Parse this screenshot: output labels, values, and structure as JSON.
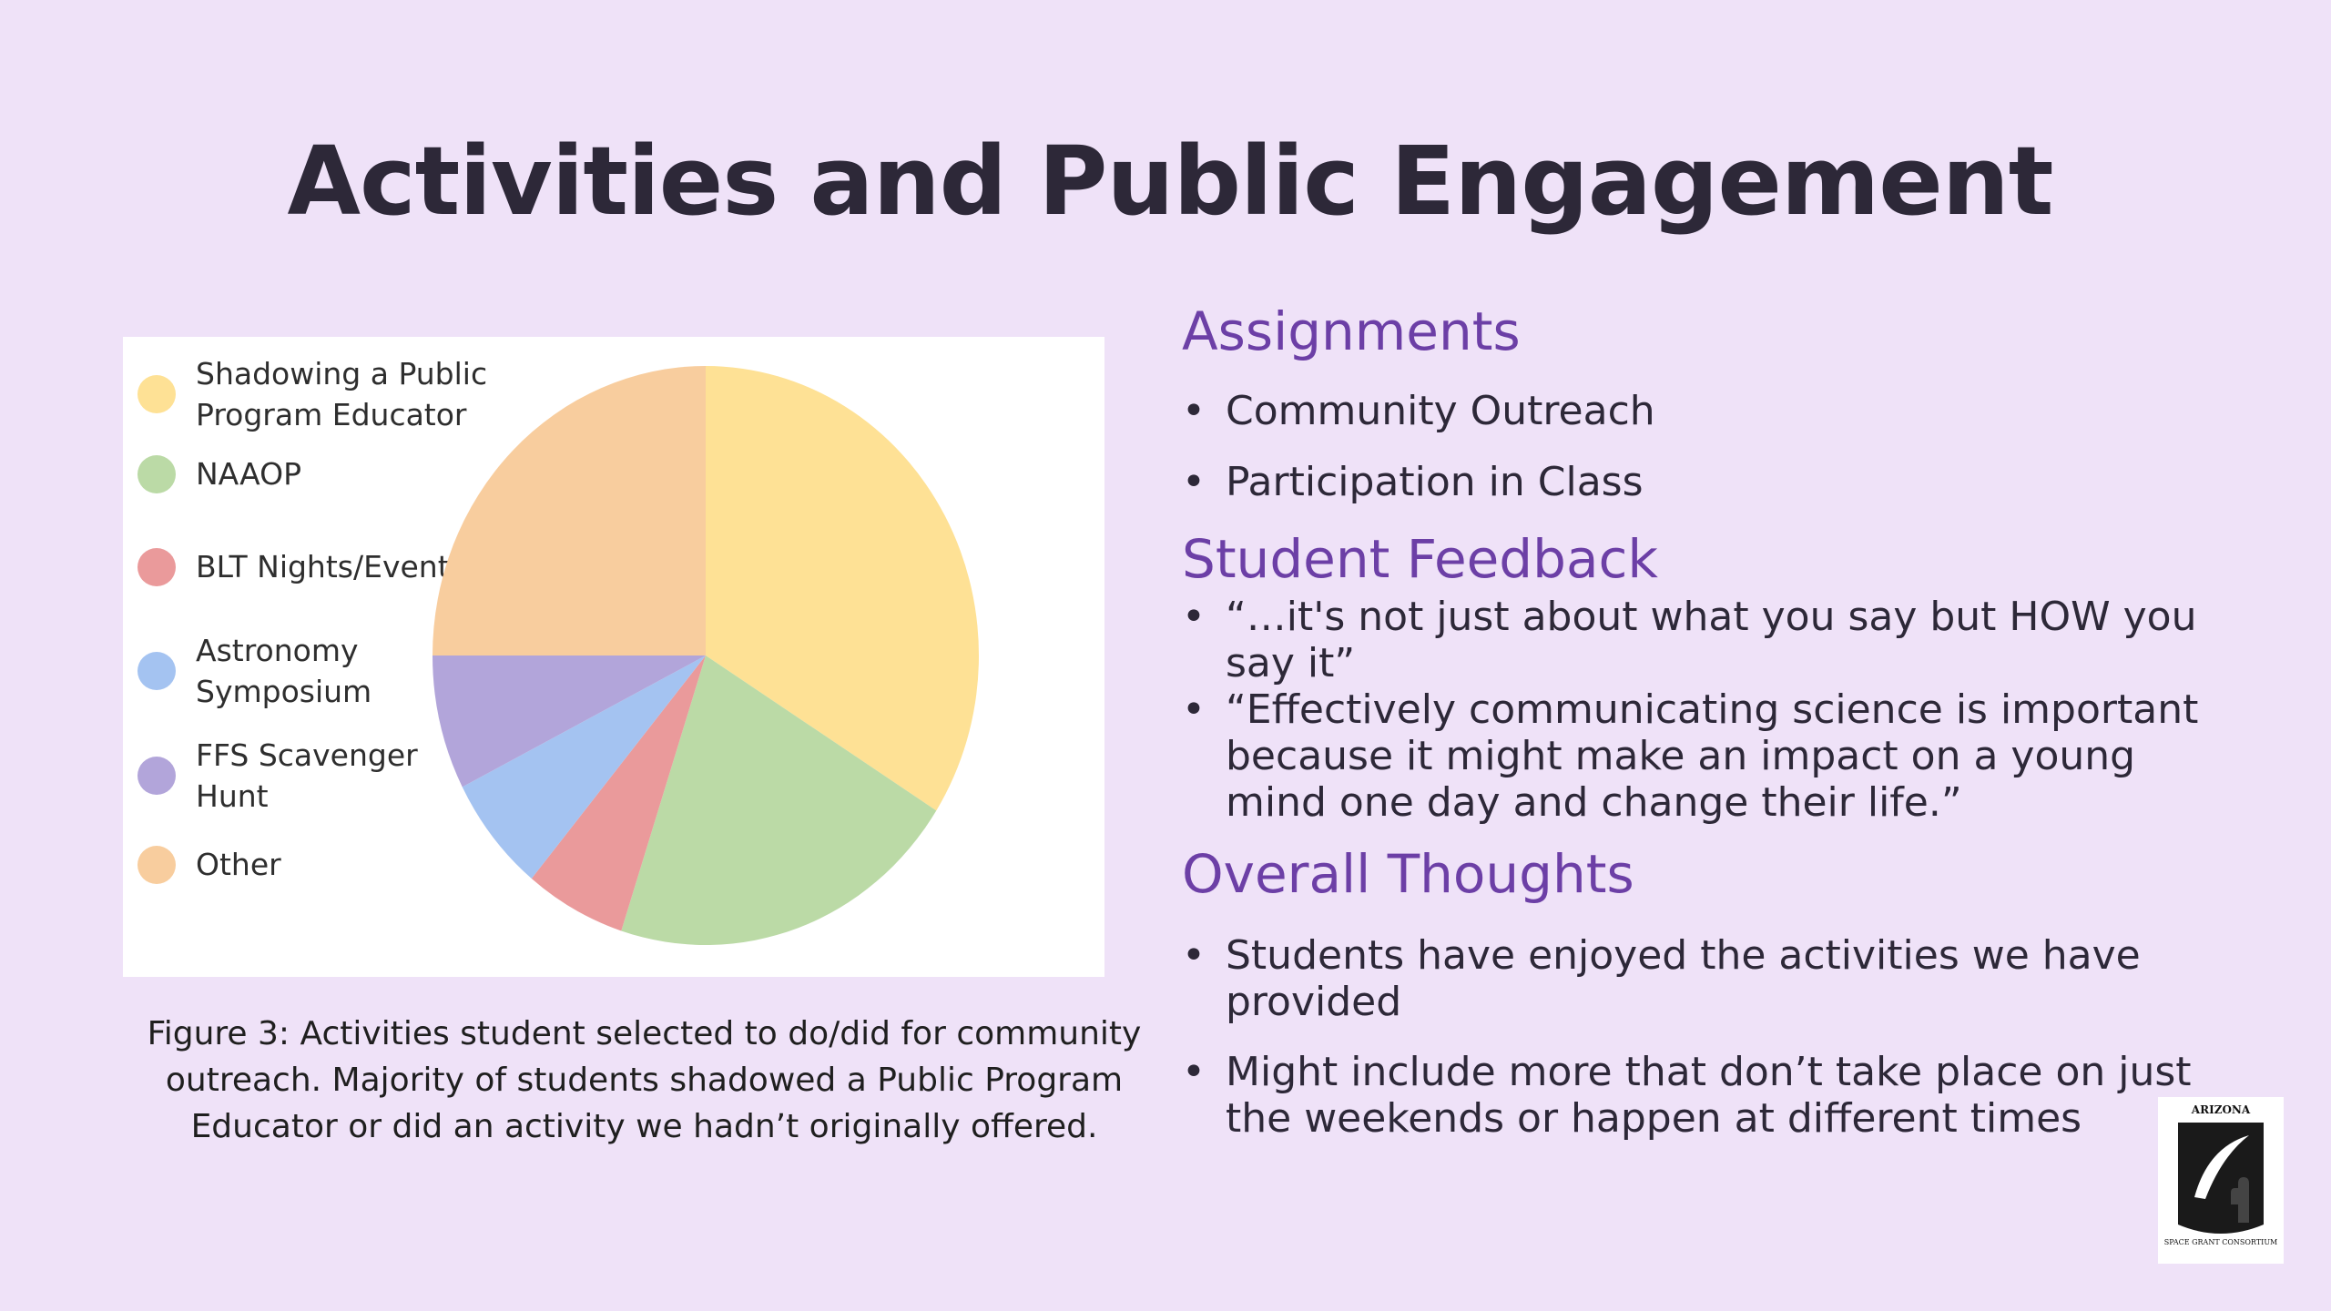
{
  "slide": {
    "title": "Activities and Public Engagement",
    "caption": "Figure 3: Activities student selected to do/did for community outreach. Majority of students shadowed a Public Program Educator or did an activity we hadn’t originally offered."
  },
  "chart_data": {
    "type": "pie",
    "title": "",
    "legend_position": "left",
    "slices": [
      {
        "label": "Shadowing a Public Program Educator",
        "value": 34,
        "color": "#fee195"
      },
      {
        "label": "NAAOP",
        "value": 21,
        "color": "#bbdaa6"
      },
      {
        "label": "BLT Nights/Events",
        "value": 6,
        "color": "#ea9a9b"
      },
      {
        "label": "Astronomy Symposium",
        "value": 6.5,
        "color": "#a4c3f1"
      },
      {
        "label": "FFS Scavenger Hunt",
        "value": 7.5,
        "color": "#b2a5da"
      },
      {
        "label": "Other",
        "value": 25,
        "color": "#f8cd9e"
      }
    ]
  },
  "sections": [
    {
      "heading": "Assignments",
      "bullets": [
        "Community Outreach",
        "Participation in Class"
      ]
    },
    {
      "heading": "Student Feedback",
      "bullets": [
        "“…it's not just about what you say but HOW you say it”",
        "“Effectively communicating science is important because it might make an impact on a young mind one day and change their life.”"
      ]
    },
    {
      "heading": "Overall Thoughts",
      "bullets": [
        "Students have enjoyed the activities we have provided",
        "Might include more that don’t take place on just the weekends or happen at different times"
      ]
    }
  ],
  "logo": {
    "top_text": "ARIZONA",
    "bottom_text": "SPACE GRANT CONSORTIUM",
    "icon": "arizona-space-grant-logo"
  }
}
